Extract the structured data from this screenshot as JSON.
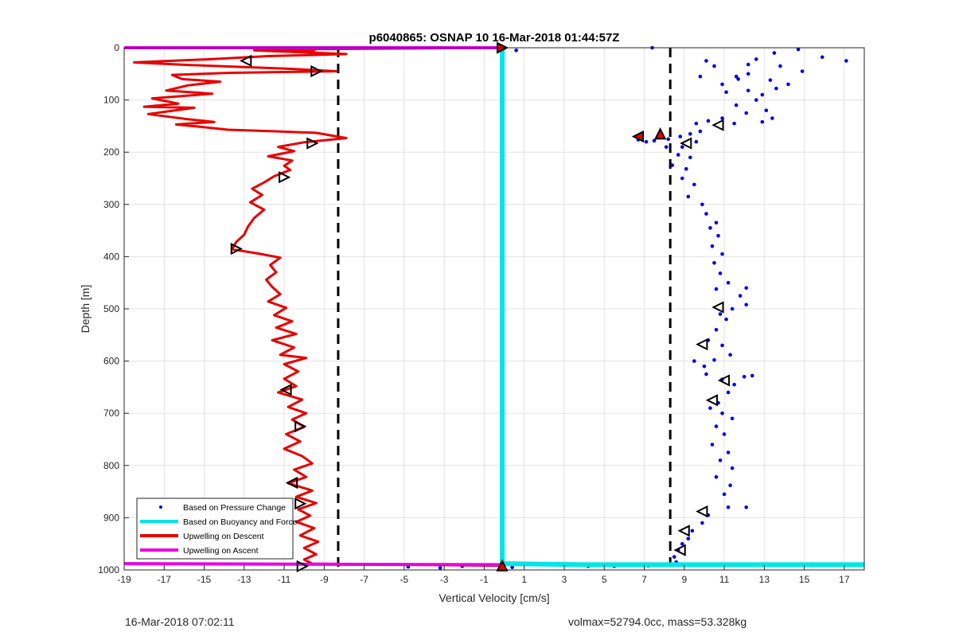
{
  "chart_data": {
    "type": "scatter",
    "title": "p6040865: OSNAP 10 16-Mar-2018 01:44:57Z",
    "xlabel": "Vertical Velocity [cm/s]",
    "ylabel": "Depth [m]",
    "xlim": [
      -19,
      18
    ],
    "ylim": [
      0,
      1000
    ],
    "y_reversed": true,
    "grid": true,
    "x_ticks": [
      -19,
      -17,
      -15,
      -13,
      -11,
      -9,
      -7,
      -5,
      -3,
      -1,
      1,
      3,
      5,
      7,
      9,
      11,
      13,
      15,
      17
    ],
    "y_ticks": [
      0,
      100,
      200,
      300,
      400,
      500,
      600,
      700,
      800,
      900,
      1000
    ],
    "legend_position": "bottom-left",
    "reference_lines": {
      "vertical_dashed_x": [
        -8.3,
        8.3
      ],
      "color": "#000000"
    },
    "series": [
      {
        "name": "Based on Pressure Change",
        "style": "points",
        "color": "#0000e6",
        "points": [
          [
            14.7,
            3
          ],
          [
            15.9,
            18
          ],
          [
            17.1,
            25
          ],
          [
            13.5,
            10
          ],
          [
            12.6,
            22
          ],
          [
            12.2,
            32
          ],
          [
            13.8,
            35
          ],
          [
            14.9,
            45
          ],
          [
            12.2,
            50
          ],
          [
            11.7,
            60
          ],
          [
            10.9,
            70
          ],
          [
            11.6,
            55
          ],
          [
            10.1,
            25
          ],
          [
            10.5,
            35
          ],
          [
            9.8,
            55
          ],
          [
            13.3,
            62
          ],
          [
            14.2,
            70
          ],
          [
            13.6,
            78
          ],
          [
            12.2,
            82
          ],
          [
            12.9,
            90
          ],
          [
            11.1,
            85
          ],
          [
            12.6,
            100
          ],
          [
            11.6,
            110
          ],
          [
            13.1,
            120
          ],
          [
            12.1,
            125
          ],
          [
            13.4,
            135
          ],
          [
            12.9,
            142
          ],
          [
            11.5,
            145
          ],
          [
            10.9,
            135
          ],
          [
            10.2,
            140
          ],
          [
            9.6,
            145
          ],
          [
            9.8,
            160
          ],
          [
            9.3,
            165
          ],
          [
            8.8,
            170
          ],
          [
            8.2,
            175
          ],
          [
            7.7,
            172
          ],
          [
            7.5,
            178
          ],
          [
            7.1,
            180
          ],
          [
            6.7,
            176
          ],
          [
            8.1,
            190
          ],
          [
            8.9,
            190
          ],
          [
            9.6,
            180
          ],
          [
            8.7,
            205
          ],
          [
            9.3,
            210
          ],
          [
            8.4,
            225
          ],
          [
            9.1,
            232
          ],
          [
            8.9,
            250
          ],
          [
            9.5,
            262
          ],
          [
            9.2,
            285
          ],
          [
            9.9,
            300
          ],
          [
            10.1,
            318
          ],
          [
            10.6,
            335
          ],
          [
            10.3,
            345
          ],
          [
            10.7,
            360
          ],
          [
            10.4,
            380
          ],
          [
            10.9,
            395
          ],
          [
            10.5,
            412
          ],
          [
            10.8,
            432
          ],
          [
            11.2,
            450
          ],
          [
            10.6,
            462
          ],
          [
            12.1,
            460
          ],
          [
            11.8,
            475
          ],
          [
            12.1,
            492
          ],
          [
            11.4,
            500
          ],
          [
            10.8,
            510
          ],
          [
            11.1,
            520
          ],
          [
            10.6,
            540
          ],
          [
            10.2,
            560
          ],
          [
            10.9,
            570
          ],
          [
            11.3,
            588
          ],
          [
            10.5,
            598
          ],
          [
            10.0,
            610
          ],
          [
            9.5,
            600
          ],
          [
            10.1,
            625
          ],
          [
            10.9,
            635
          ],
          [
            12.0,
            630
          ],
          [
            12.4,
            628
          ],
          [
            11.5,
            645
          ],
          [
            11.2,
            660
          ],
          [
            10.7,
            680
          ],
          [
            10.3,
            690
          ],
          [
            10.9,
            700
          ],
          [
            11.4,
            710
          ],
          [
            10.6,
            725
          ],
          [
            11.0,
            740
          ],
          [
            10.4,
            760
          ],
          [
            11.2,
            775
          ],
          [
            10.8,
            790
          ],
          [
            11.4,
            805
          ],
          [
            10.6,
            822
          ],
          [
            11.3,
            838
          ],
          [
            11.0,
            855
          ],
          [
            12.1,
            880
          ],
          [
            11.2,
            880
          ],
          [
            10.2,
            895
          ],
          [
            9.9,
            910
          ],
          [
            9.4,
            925
          ],
          [
            9.2,
            940
          ],
          [
            8.9,
            950
          ],
          [
            8.7,
            962
          ],
          [
            8.5,
            975
          ],
          [
            8.6,
            985
          ],
          [
            7.9,
            990
          ],
          [
            7.2,
            992
          ],
          [
            5.5,
            993
          ],
          [
            4.2,
            993
          ],
          [
            0.4,
            995
          ],
          [
            -2.1,
            993
          ],
          [
            -3.2,
            996
          ],
          [
            -4.8,
            994
          ],
          [
            0.6,
            5
          ],
          [
            7.4,
            0
          ],
          [
            -3.5,
            0
          ]
        ]
      },
      {
        "name": "Based on Buoyancy and Force",
        "style": "line",
        "color": "#00e5e5",
        "points": [
          [
            -0.1,
            0
          ],
          [
            -0.1,
            100
          ],
          [
            -0.1,
            200
          ],
          [
            -0.1,
            300
          ],
          [
            -0.1,
            400
          ],
          [
            -0.1,
            500
          ],
          [
            -0.1,
            600
          ],
          [
            -0.1,
            700
          ],
          [
            -0.1,
            800
          ],
          [
            -0.1,
            900
          ],
          [
            -0.1,
            988
          ],
          [
            4.0,
            990
          ],
          [
            10.0,
            990
          ],
          [
            18.0,
            990
          ]
        ]
      },
      {
        "name": "Upwelling on Descent",
        "style": "line",
        "color": "#e60000",
        "points": [
          [
            -0.1,
            0
          ],
          [
            -10.5,
            3
          ],
          [
            -9.5,
            5
          ],
          [
            -12.5,
            5
          ],
          [
            -7.9,
            12
          ],
          [
            -11.8,
            16
          ],
          [
            -14.7,
            22
          ],
          [
            -18.5,
            28
          ],
          [
            -15.8,
            33
          ],
          [
            -10.9,
            40
          ],
          [
            -8.4,
            45
          ],
          [
            -13.7,
            48
          ],
          [
            -16.6,
            52
          ],
          [
            -16.1,
            60
          ],
          [
            -14.2,
            65
          ],
          [
            -15.8,
            72
          ],
          [
            -16.9,
            82
          ],
          [
            -14.6,
            88
          ],
          [
            -17.6,
            97
          ],
          [
            -16.3,
            107
          ],
          [
            -18.0,
            113
          ],
          [
            -15.5,
            115
          ],
          [
            -17.8,
            127
          ],
          [
            -16.0,
            136
          ],
          [
            -14.5,
            142
          ],
          [
            -16.4,
            147
          ],
          [
            -15.0,
            152
          ],
          [
            -13.8,
            157
          ],
          [
            -11.4,
            160
          ],
          [
            -9.4,
            163
          ],
          [
            -7.9,
            173
          ],
          [
            -10.0,
            181
          ],
          [
            -11.3,
            190
          ],
          [
            -10.5,
            198
          ],
          [
            -11.8,
            208
          ],
          [
            -10.6,
            216
          ],
          [
            -11.0,
            226
          ],
          [
            -10.7,
            234
          ],
          [
            -11.5,
            246
          ],
          [
            -12.0,
            258
          ],
          [
            -12.6,
            270
          ],
          [
            -12.1,
            282
          ],
          [
            -12.7,
            296
          ],
          [
            -12.0,
            310
          ],
          [
            -12.5,
            326
          ],
          [
            -12.8,
            342
          ],
          [
            -13.0,
            358
          ],
          [
            -13.4,
            372
          ],
          [
            -13.6,
            386
          ],
          [
            -12.3,
            394
          ],
          [
            -11.2,
            402
          ],
          [
            -11.7,
            416
          ],
          [
            -11.4,
            430
          ],
          [
            -11.9,
            444
          ],
          [
            -11.6,
            458
          ],
          [
            -11.2,
            472
          ],
          [
            -11.8,
            486
          ],
          [
            -10.9,
            498
          ],
          [
            -11.5,
            512
          ],
          [
            -10.6,
            524
          ],
          [
            -11.4,
            536
          ],
          [
            -10.4,
            548
          ],
          [
            -11.6,
            560
          ],
          [
            -10.5,
            574
          ],
          [
            -11.2,
            588
          ],
          [
            -9.9,
            594
          ],
          [
            -11.0,
            606
          ],
          [
            -10.3,
            620
          ],
          [
            -11.0,
            634
          ],
          [
            -10.4,
            648
          ],
          [
            -11.3,
            660
          ],
          [
            -10.1,
            674
          ],
          [
            -10.8,
            688
          ],
          [
            -9.9,
            700
          ],
          [
            -10.6,
            712
          ],
          [
            -10.0,
            726
          ],
          [
            -10.9,
            740
          ],
          [
            -10.2,
            754
          ],
          [
            -11.0,
            768
          ],
          [
            -10.1,
            782
          ],
          [
            -9.6,
            796
          ],
          [
            -10.5,
            808
          ],
          [
            -9.9,
            822
          ],
          [
            -10.8,
            834
          ],
          [
            -9.6,
            848
          ],
          [
            -10.4,
            860
          ],
          [
            -9.4,
            872
          ],
          [
            -10.3,
            884
          ],
          [
            -9.7,
            896
          ],
          [
            -10.4,
            908
          ],
          [
            -9.5,
            920
          ],
          [
            -10.2,
            934
          ],
          [
            -9.3,
            946
          ],
          [
            -10.0,
            958
          ],
          [
            -9.4,
            970
          ],
          [
            -10.0,
            980
          ],
          [
            -9.6,
            988
          ],
          [
            -0.1,
            992
          ]
        ]
      },
      {
        "name": "Upwelling on Ascent",
        "style": "line",
        "color": "#e600e6",
        "points": [
          [
            -19,
            0
          ],
          [
            -0.1,
            0
          ],
          [
            -0.1,
            990
          ],
          [
            -19,
            988
          ]
        ]
      }
    ],
    "markers": {
      "hollow_triangles": [
        [
          -12.9,
          25,
          "left"
        ],
        [
          -9.4,
          45,
          "right"
        ],
        [
          10.7,
          148,
          "left"
        ],
        [
          -9.6,
          183,
          "right"
        ],
        [
          9.1,
          183,
          "left"
        ],
        [
          -11.0,
          248,
          "right"
        ],
        [
          -13.4,
          385,
          "right"
        ],
        [
          10.7,
          497,
          "left"
        ],
        [
          9.9,
          568,
          "left"
        ],
        [
          -10.9,
          655,
          "left"
        ],
        [
          11.0,
          637,
          "left"
        ],
        [
          10.4,
          675,
          "left"
        ],
        [
          -10.2,
          725,
          "right"
        ],
        [
          -10.6,
          833,
          "left"
        ],
        [
          -10.2,
          873,
          "right"
        ],
        [
          9.9,
          888,
          "left"
        ],
        [
          9.0,
          925,
          "left"
        ],
        [
          8.8,
          962,
          "left"
        ],
        [
          -10.1,
          993,
          "right"
        ]
      ],
      "filled_triangles": [
        [
          -0.1,
          0,
          "right"
        ],
        [
          -0.1,
          992,
          "up"
        ],
        [
          7.8,
          165,
          "up"
        ],
        [
          6.7,
          170,
          "left"
        ]
      ]
    }
  },
  "footer": {
    "timestamp": "16-Mar-2018 07:02:11",
    "summary": "volmax=52794.0cc, mass=53.328kg"
  }
}
